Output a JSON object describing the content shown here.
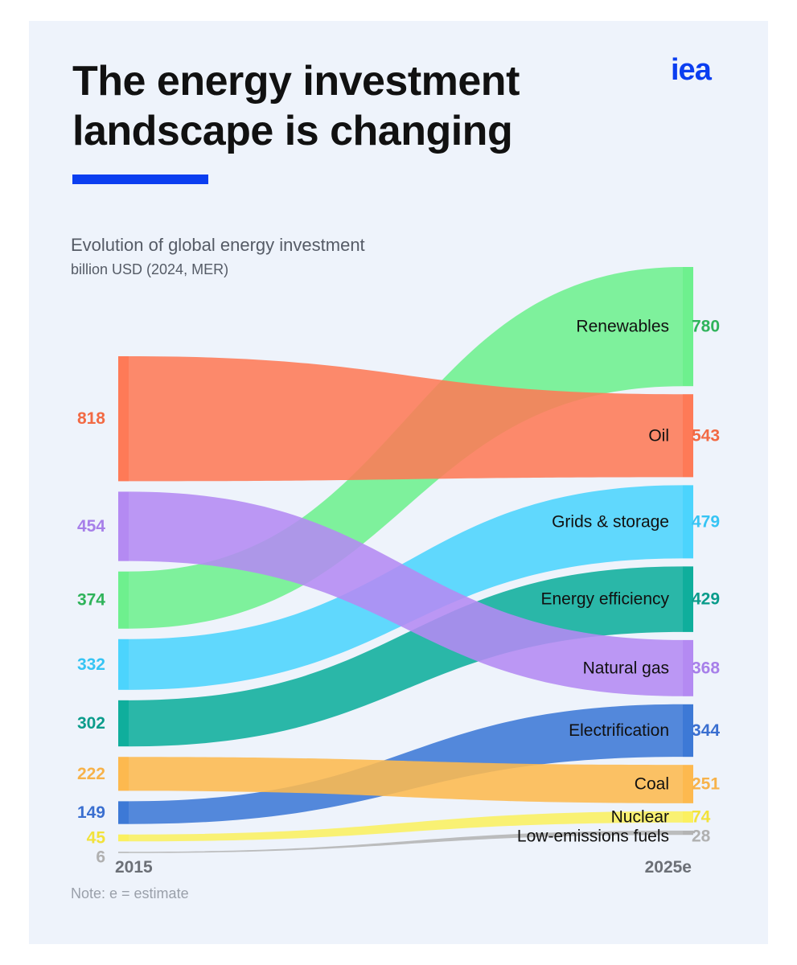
{
  "header": {
    "title": "The energy investment landscape is changing",
    "logo": "iea",
    "subtitle": "Evolution of global energy investment",
    "unit": "billion USD (2024, MER)"
  },
  "note": "Note: e = estimate",
  "chart_data": {
    "type": "sankey",
    "title": "Evolution of global energy investment",
    "ylabel": "billion USD (2024, MER)",
    "x_labels": [
      "2015",
      "2025e"
    ],
    "series": [
      {
        "name": "Renewables",
        "v2015": 374,
        "v2025": 780,
        "color": "#6ef08e",
        "label_color": "#2fb35a"
      },
      {
        "name": "Oil",
        "v2015": 818,
        "v2025": 543,
        "color": "#fe7a57",
        "label_color": "#f26a44"
      },
      {
        "name": "Grids & storage",
        "v2015": 332,
        "v2025": 479,
        "color": "#4cd4fd",
        "label_color": "#36c4f4"
      },
      {
        "name": "Energy efficiency",
        "v2015": 302,
        "v2025": 429,
        "color": "#0fae9c",
        "label_color": "#0b9c8b"
      },
      {
        "name": "Natural gas",
        "v2015": 454,
        "v2025": 368,
        "color": "#b48af2",
        "label_color": "#a77fe9"
      },
      {
        "name": "Electrification",
        "v2015": 149,
        "v2025": 344,
        "color": "#3d79d6",
        "label_color": "#3a6fd0"
      },
      {
        "name": "Coal",
        "v2015": 222,
        "v2025": 251,
        "color": "#fdb94f",
        "label_color": "#f7b24a"
      },
      {
        "name": "Nuclear",
        "v2015": 45,
        "v2025": 74,
        "color": "#fbf060",
        "label_color": "#f2e23b"
      },
      {
        "name": "Low-emissions fuels",
        "v2015": 6,
        "v2025": 28,
        "color": "#b4b4b4",
        "label_color": "#b0b0b0"
      }
    ],
    "order_2015": [
      "Oil",
      "Natural gas",
      "Renewables",
      "Grids & storage",
      "Energy efficiency",
      "Coal",
      "Electrification",
      "Nuclear",
      "Low-emissions fuels"
    ],
    "order_2025": [
      "Renewables",
      "Oil",
      "Grids & storage",
      "Energy efficiency",
      "Natural gas",
      "Electrification",
      "Coal",
      "Nuclear",
      "Low-emissions fuels"
    ]
  }
}
